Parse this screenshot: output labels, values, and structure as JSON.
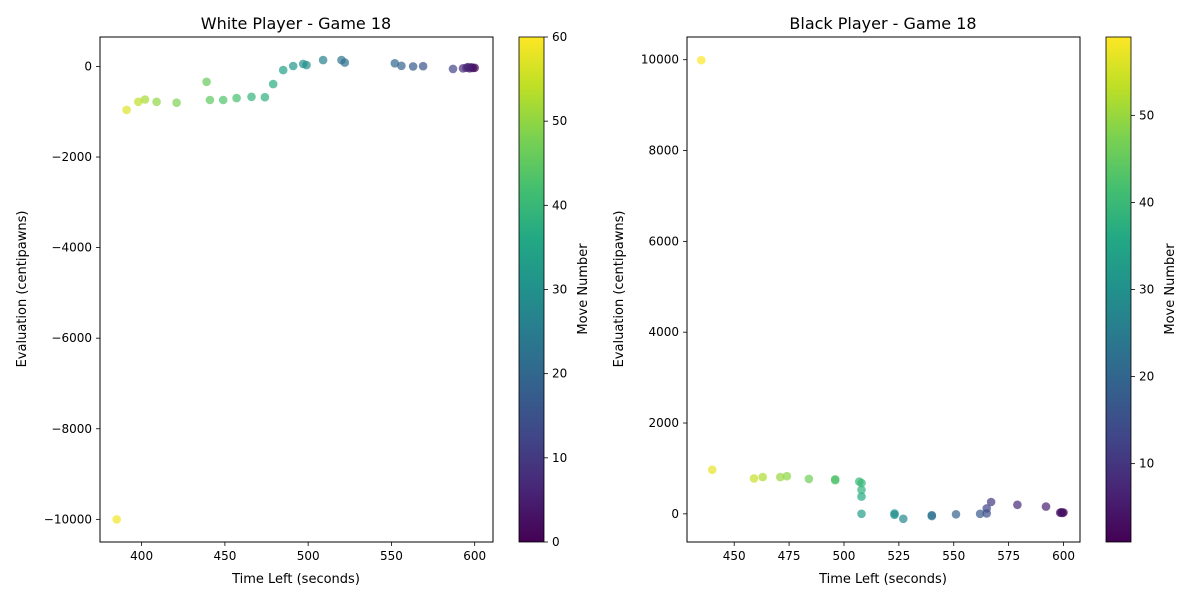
{
  "chart_data": [
    {
      "type": "scatter",
      "title": "White Player - Game 18",
      "xlabel": "Time Left (seconds)",
      "ylabel": "Evaluation (centipawns)",
      "xlim": [
        375,
        611
      ],
      "ylim": [
        -10500,
        650
      ],
      "x_ticks": [
        400,
        450,
        500,
        550,
        600
      ],
      "y_ticks": [
        0,
        -2000,
        -4000,
        -6000,
        -8000,
        -10000
      ],
      "colorbar": {
        "label": "Move Number",
        "range": [
          0,
          60
        ],
        "ticks": [
          0,
          10,
          20,
          30,
          40,
          50,
          60
        ]
      },
      "colormap": "viridis",
      "points": [
        {
          "x": 600,
          "y": -30,
          "move": 1
        },
        {
          "x": 599,
          "y": -35,
          "move": 2
        },
        {
          "x": 598,
          "y": -20,
          "move": 3
        },
        {
          "x": 597,
          "y": -40,
          "move": 4
        },
        {
          "x": 596,
          "y": -15,
          "move": 5
        },
        {
          "x": 595,
          "y": -30,
          "move": 6
        },
        {
          "x": 593,
          "y": -40,
          "move": 7
        },
        {
          "x": 587,
          "y": -55,
          "move": 12
        },
        {
          "x": 569,
          "y": 5,
          "move": 15
        },
        {
          "x": 563,
          "y": 0,
          "move": 17
        },
        {
          "x": 556,
          "y": 15,
          "move": 19
        },
        {
          "x": 552,
          "y": 70,
          "move": 20
        },
        {
          "x": 522,
          "y": 85,
          "move": 22
        },
        {
          "x": 520,
          "y": 140,
          "move": 23
        },
        {
          "x": 509,
          "y": 140,
          "move": 26
        },
        {
          "x": 499,
          "y": 30,
          "move": 29
        },
        {
          "x": 497,
          "y": 55,
          "move": 30
        },
        {
          "x": 491,
          "y": 10,
          "move": 31
        },
        {
          "x": 485,
          "y": -80,
          "move": 34
        },
        {
          "x": 479,
          "y": -390,
          "move": 37
        },
        {
          "x": 474,
          "y": -680,
          "move": 38
        },
        {
          "x": 466,
          "y": -670,
          "move": 39
        },
        {
          "x": 457,
          "y": -700,
          "move": 42
        },
        {
          "x": 449,
          "y": -740,
          "move": 43
        },
        {
          "x": 441,
          "y": -740,
          "move": 45
        },
        {
          "x": 439,
          "y": -340,
          "move": 46
        },
        {
          "x": 421,
          "y": -800,
          "move": 48
        },
        {
          "x": 409,
          "y": -780,
          "move": 50
        },
        {
          "x": 402,
          "y": -730,
          "move": 52
        },
        {
          "x": 398,
          "y": -780,
          "move": 54
        },
        {
          "x": 391,
          "y": -960,
          "move": 57
        },
        {
          "x": 385,
          "y": -10000,
          "move": 59
        }
      ]
    },
    {
      "type": "scatter",
      "title": "Black Player - Game 18",
      "xlabel": "Time Left (seconds)",
      "ylabel": "Evaluation (centipawns)",
      "xlim": [
        428.5,
        607.5
      ],
      "ylim": [
        -620,
        10500
      ],
      "x_ticks": [
        450,
        475,
        500,
        525,
        550,
        575,
        600
      ],
      "y_ticks": [
        0,
        2000,
        4000,
        6000,
        8000,
        10000
      ],
      "colorbar": {
        "label": "Move Number",
        "range": [
          1,
          59
        ],
        "ticks": [
          10,
          20,
          30,
          40,
          50
        ]
      },
      "colormap": "viridis",
      "points": [
        {
          "x": 600,
          "y": 30,
          "move": 1
        },
        {
          "x": 599.5,
          "y": 20,
          "move": 2
        },
        {
          "x": 599,
          "y": 35,
          "move": 3
        },
        {
          "x": 598.5,
          "y": 25,
          "move": 4
        },
        {
          "x": 592,
          "y": 160,
          "move": 6
        },
        {
          "x": 579,
          "y": 200,
          "move": 8
        },
        {
          "x": 567,
          "y": 260,
          "move": 11
        },
        {
          "x": 565,
          "y": 120,
          "move": 13
        },
        {
          "x": 565,
          "y": 10,
          "move": 15
        },
        {
          "x": 562,
          "y": 0,
          "move": 17
        },
        {
          "x": 551,
          "y": -10,
          "move": 19
        },
        {
          "x": 540,
          "y": -30,
          "move": 22
        },
        {
          "x": 540,
          "y": -50,
          "move": 23
        },
        {
          "x": 527,
          "y": -110,
          "move": 28
        },
        {
          "x": 523,
          "y": -20,
          "move": 29
        },
        {
          "x": 523,
          "y": 10,
          "move": 30
        },
        {
          "x": 508,
          "y": 0,
          "move": 33
        },
        {
          "x": 508,
          "y": 380,
          "move": 36
        },
        {
          "x": 508,
          "y": 530,
          "move": 38
        },
        {
          "x": 508,
          "y": 680,
          "move": 39
        },
        {
          "x": 507,
          "y": 710,
          "move": 40
        },
        {
          "x": 496,
          "y": 740,
          "move": 42
        },
        {
          "x": 496,
          "y": 760,
          "move": 43
        },
        {
          "x": 484,
          "y": 770,
          "move": 46
        },
        {
          "x": 474,
          "y": 830,
          "move": 49
        },
        {
          "x": 471,
          "y": 810,
          "move": 50
        },
        {
          "x": 463,
          "y": 810,
          "move": 52
        },
        {
          "x": 459,
          "y": 780,
          "move": 54
        },
        {
          "x": 440,
          "y": 970,
          "move": 57
        },
        {
          "x": 435,
          "y": 9990,
          "move": 59
        }
      ]
    }
  ]
}
